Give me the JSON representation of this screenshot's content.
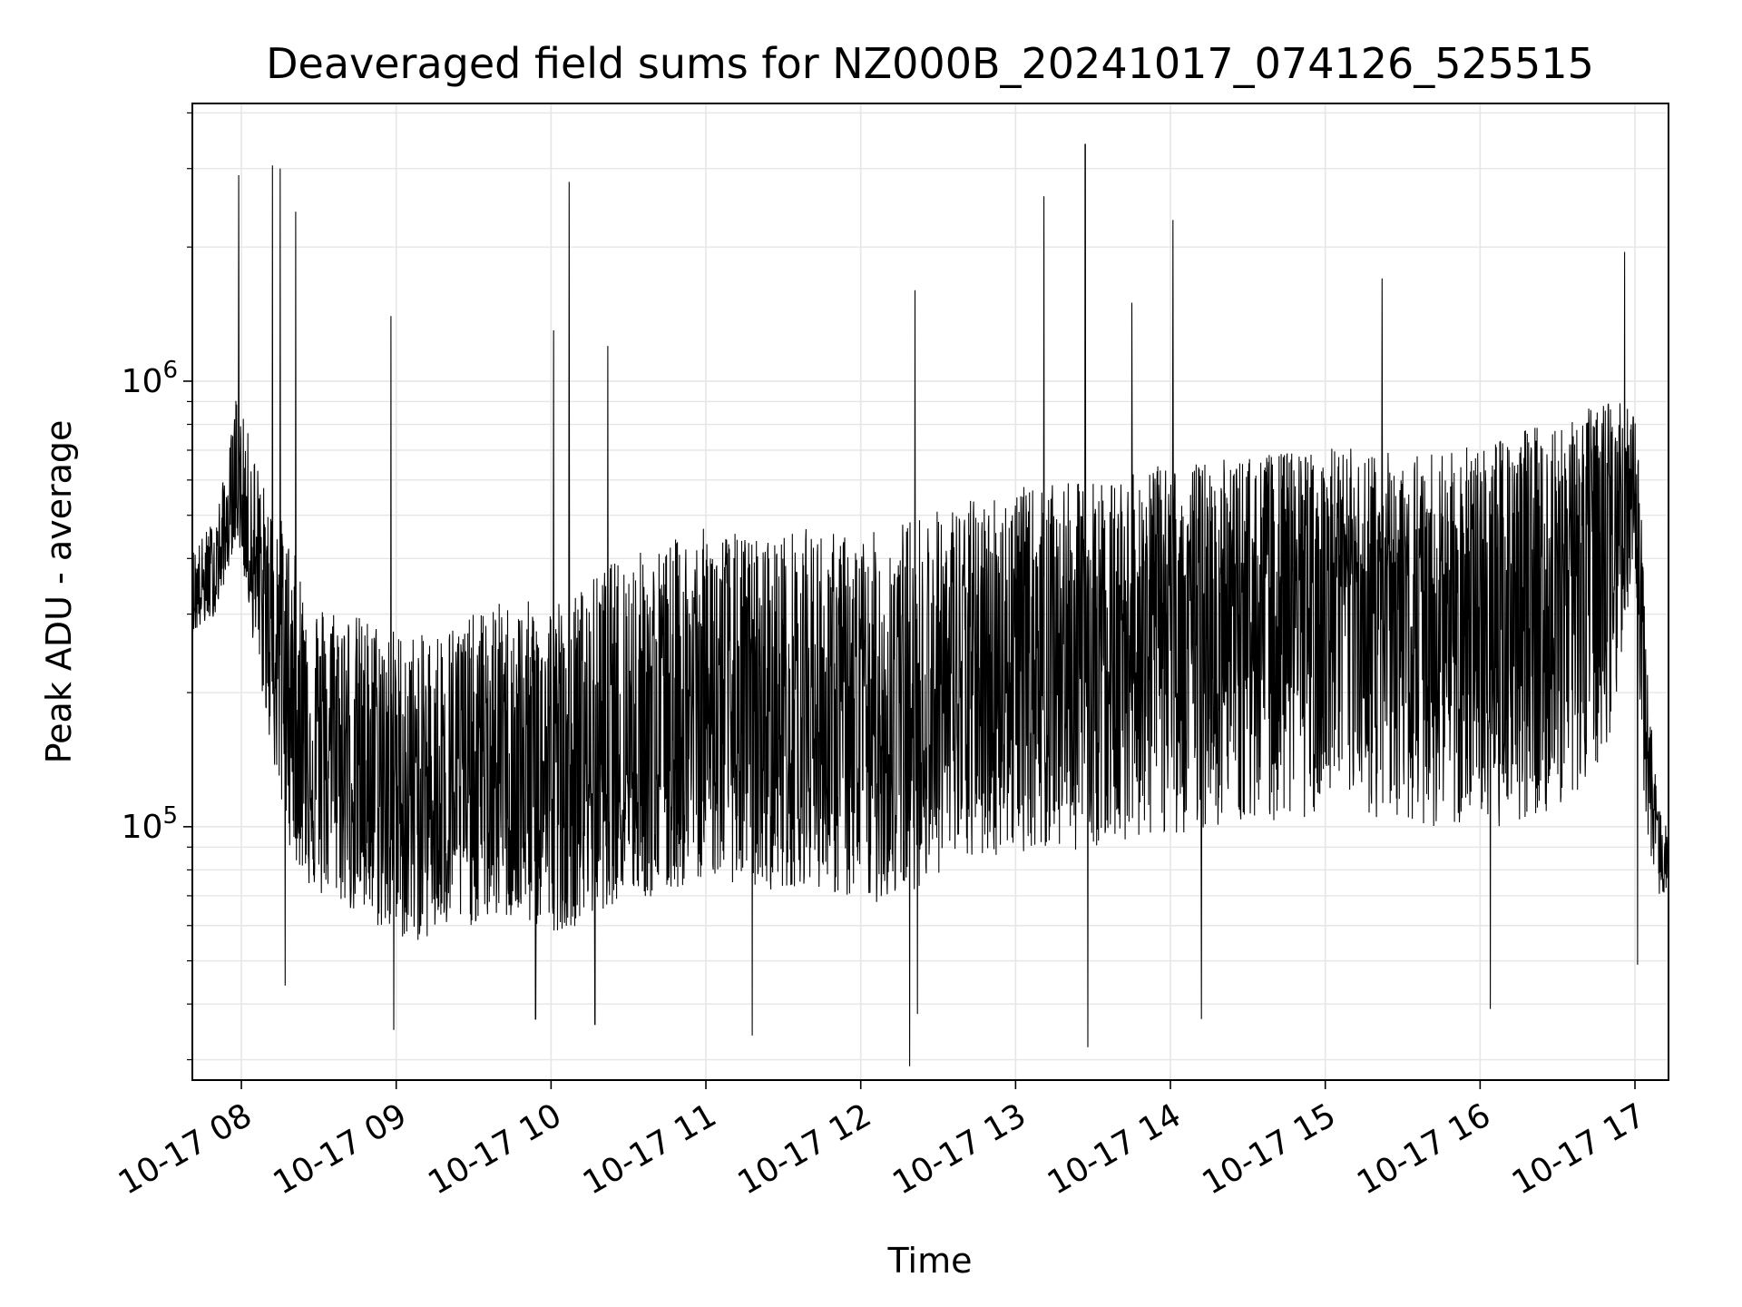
{
  "chart_data": {
    "type": "line",
    "title": "Deaveraged field sums for NZ000B_20241017_074126_525515",
    "xlabel": "Time",
    "ylabel": "Peak ADU - average",
    "yscale": "log",
    "xlim": [
      "2024-10-17T07:41:00",
      "2024-10-17T17:13:00"
    ],
    "ylim": [
      27000,
      4200000
    ],
    "grid": true,
    "line_color": "#000000",
    "x_ticks": [
      {
        "t": "2024-10-17T08:00:00",
        "label": "10-17 08"
      },
      {
        "t": "2024-10-17T09:00:00",
        "label": "10-17 09"
      },
      {
        "t": "2024-10-17T10:00:00",
        "label": "10-17 10"
      },
      {
        "t": "2024-10-17T11:00:00",
        "label": "10-17 11"
      },
      {
        "t": "2024-10-17T12:00:00",
        "label": "10-17 12"
      },
      {
        "t": "2024-10-17T13:00:00",
        "label": "10-17 13"
      },
      {
        "t": "2024-10-17T14:00:00",
        "label": "10-17 14"
      },
      {
        "t": "2024-10-17T15:00:00",
        "label": "10-17 15"
      },
      {
        "t": "2024-10-17T16:00:00",
        "label": "10-17 16"
      },
      {
        "t": "2024-10-17T17:00:00",
        "label": "10-17 17"
      }
    ],
    "y_major_ticks": [
      {
        "value": 100000,
        "base": "10",
        "exp": "5"
      },
      {
        "value": 1000000,
        "base": "10",
        "exp": "6"
      }
    ],
    "series": [
      {
        "x": [
          "2024-10-17T07:41:00",
          "2024-10-17T07:45:00",
          "2024-10-17T07:50:00",
          "2024-10-17T07:55:00",
          "2024-10-17T07:58:00",
          "2024-10-17T08:00:00",
          "2024-10-17T08:05:00",
          "2024-10-17T08:10:00",
          "2024-10-17T08:15:00",
          "2024-10-17T08:20:00",
          "2024-10-17T08:25:00",
          "2024-10-17T08:30:00",
          "2024-10-17T08:35:00",
          "2024-10-17T08:40:00",
          "2024-10-17T08:45:00",
          "2024-10-17T08:50:00",
          "2024-10-17T08:55:00",
          "2024-10-17T09:00:00",
          "2024-10-17T09:10:00",
          "2024-10-17T09:20:00",
          "2024-10-17T09:30:00",
          "2024-10-17T09:40:00",
          "2024-10-17T09:50:00",
          "2024-10-17T10:00:00",
          "2024-10-17T10:10:00",
          "2024-10-17T10:20:00",
          "2024-10-17T10:30:00",
          "2024-10-17T10:40:00",
          "2024-10-17T10:50:00",
          "2024-10-17T11:00:00",
          "2024-10-17T11:10:00",
          "2024-10-17T11:20:00",
          "2024-10-17T11:30:00",
          "2024-10-17T11:40:00",
          "2024-10-17T11:50:00",
          "2024-10-17T12:00:00",
          "2024-10-17T12:10:00",
          "2024-10-17T12:20:00",
          "2024-10-17T12:30:00",
          "2024-10-17T12:40:00",
          "2024-10-17T12:50:00",
          "2024-10-17T13:00:00",
          "2024-10-17T13:10:00",
          "2024-10-17T13:20:00",
          "2024-10-17T13:30:00",
          "2024-10-17T13:40:00",
          "2024-10-17T13:50:00",
          "2024-10-17T14:00:00",
          "2024-10-17T14:10:00",
          "2024-10-17T14:20:00",
          "2024-10-17T14:30:00",
          "2024-10-17T14:40:00",
          "2024-10-17T14:50:00",
          "2024-10-17T15:00:00",
          "2024-10-17T15:10:00",
          "2024-10-17T15:20:00",
          "2024-10-17T15:30:00",
          "2024-10-17T15:40:00",
          "2024-10-17T15:50:00",
          "2024-10-17T16:00:00",
          "2024-10-17T16:10:00",
          "2024-10-17T16:20:00",
          "2024-10-17T16:30:00",
          "2024-10-17T16:40:00",
          "2024-10-17T16:50:00",
          "2024-10-17T16:55:00",
          "2024-10-17T17:00:00",
          "2024-10-17T17:03:00",
          "2024-10-17T17:06:00",
          "2024-10-17T17:09:00",
          "2024-10-17T17:13:00"
        ],
        "median": [
          320000,
          340000,
          360000,
          460000,
          560000,
          520000,
          380000,
          280000,
          250000,
          200000,
          160000,
          140000,
          150000,
          140000,
          130000,
          125000,
          120000,
          115000,
          110000,
          120000,
          125000,
          130000,
          125000,
          120000,
          125000,
          140000,
          150000,
          140000,
          170000,
          185000,
          175000,
          165000,
          170000,
          175000,
          165000,
          155000,
          160000,
          170000,
          190000,
          205000,
          220000,
          235000,
          235000,
          240000,
          250000,
          260000,
          275000,
          280000,
          290000,
          300000,
          310000,
          315000,
          320000,
          330000,
          330000,
          320000,
          315000,
          310000,
          305000,
          300000,
          320000,
          340000,
          360000,
          380000,
          420000,
          520000,
          600000,
          250000,
          120000,
          90000,
          85000
        ],
        "lower": [
          270000,
          280000,
          300000,
          380000,
          450000,
          400000,
          250000,
          170000,
          110000,
          85000,
          75000,
          68000,
          70000,
          66000,
          62000,
          60000,
          58000,
          56000,
          55000,
          58000,
          60000,
          62000,
          60000,
          58000,
          60000,
          65000,
          70000,
          68000,
          72000,
          78000,
          75000,
          72000,
          72000,
          75000,
          70000,
          66000,
          68000,
          72000,
          78000,
          82000,
          85000,
          88000,
          88000,
          88000,
          90000,
          92000,
          95000,
          95000,
          98000,
          100000,
          102000,
          103000,
          104000,
          106000,
          106000,
          104000,
          102000,
          100000,
          98000,
          96000,
          100000,
          105000,
          110000,
          120000,
          150000,
          250000,
          400000,
          130000,
          80000,
          70000,
          68000
        ],
        "upper": [
          420000,
          450000,
          500000,
          680000,
          950000,
          850000,
          700000,
          550000,
          500000,
          420000,
          350000,
          320000,
          320000,
          310000,
          300000,
          295000,
          290000,
          280000,
          270000,
          290000,
          300000,
          320000,
          320000,
          330000,
          340000,
          380000,
          420000,
          420000,
          450000,
          470000,
          460000,
          450000,
          460000,
          470000,
          460000,
          450000,
          470000,
          500000,
          520000,
          540000,
          560000,
          580000,
          580000,
          590000,
          600000,
          620000,
          640000,
          650000,
          660000,
          670000,
          680000,
          690000,
          700000,
          710000,
          710000,
          700000,
          700000,
          700000,
          700000,
          720000,
          760000,
          800000,
          840000,
          860000,
          900000,
          900000,
          900000,
          450000,
          180000,
          110000,
          100000
        ],
        "spikes": [
          [
            "2024-10-17T07:59:00",
            2900000
          ],
          [
            "2024-10-17T08:12:00",
            3050000
          ],
          [
            "2024-10-17T08:15:00",
            3000000
          ],
          [
            "2024-10-17T08:21:00",
            2400000
          ],
          [
            "2024-10-17T08:58:00",
            1400000
          ],
          [
            "2024-10-17T10:01:00",
            1300000
          ],
          [
            "2024-10-17T10:07:00",
            2800000
          ],
          [
            "2024-10-17T10:22:00",
            1200000
          ],
          [
            "2024-10-17T12:21:00",
            1600000
          ],
          [
            "2024-10-17T13:11:00",
            2600000
          ],
          [
            "2024-10-17T13:27:00",
            3400000
          ],
          [
            "2024-10-17T13:45:00",
            1500000
          ],
          [
            "2024-10-17T14:01:00",
            2300000
          ],
          [
            "2024-10-17T15:22:00",
            1700000
          ],
          [
            "2024-10-17T16:56:00",
            1950000
          ],
          [
            "2024-10-17T08:17:00",
            44000
          ],
          [
            "2024-10-17T08:59:00",
            35000
          ],
          [
            "2024-10-17T09:54:00",
            37000
          ],
          [
            "2024-10-17T10:17:00",
            36000
          ],
          [
            "2024-10-17T11:18:00",
            34000
          ],
          [
            "2024-10-17T12:19:00",
            29000
          ],
          [
            "2024-10-17T12:22:00",
            38000
          ],
          [
            "2024-10-17T13:28:00",
            32000
          ],
          [
            "2024-10-17T14:12:00",
            37000
          ],
          [
            "2024-10-17T16:04:00",
            39000
          ],
          [
            "2024-10-17T17:01:00",
            49000
          ]
        ]
      }
    ]
  }
}
